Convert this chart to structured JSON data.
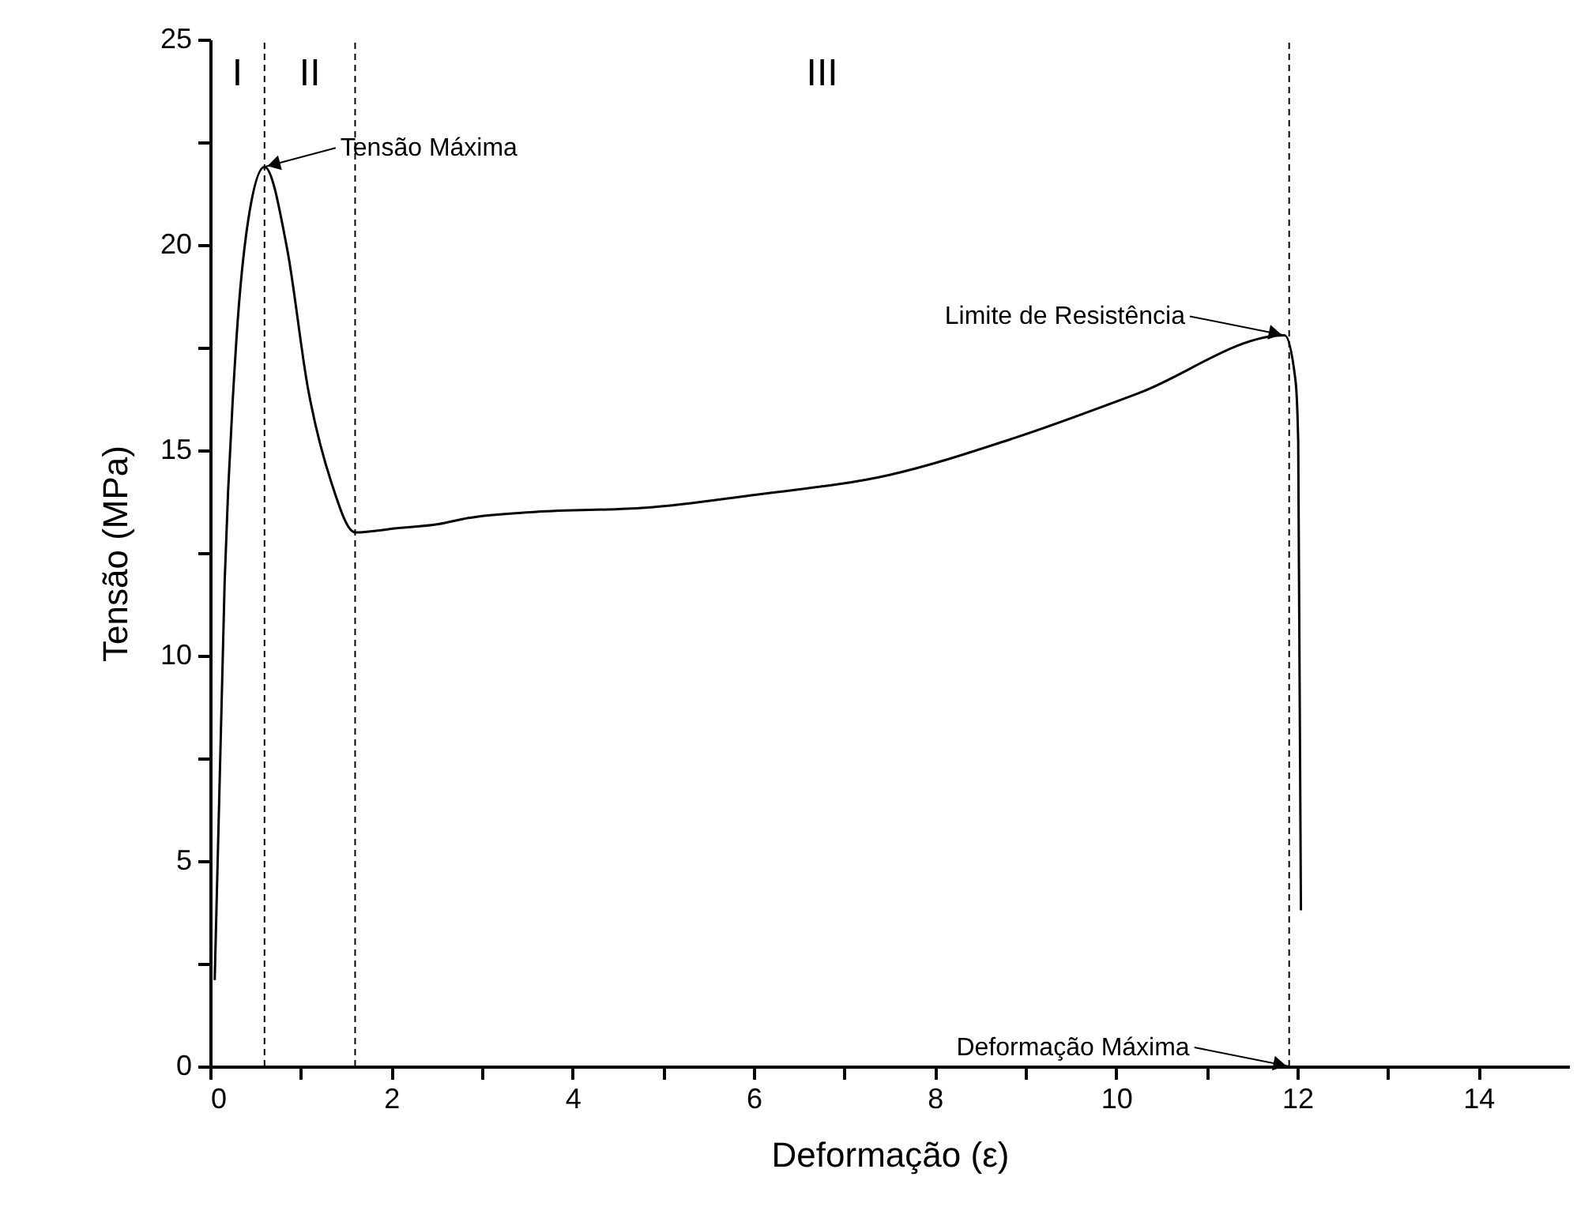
{
  "chart_data": {
    "type": "line",
    "xlabel": "Deformação (ε)",
    "ylabel": "Tensão (MPa)",
    "xlim": [
      0,
      15
    ],
    "ylim": [
      0,
      25
    ],
    "xticks": [
      0,
      {
        "value": 1,
        "label": null
      },
      2,
      {
        "value": 3,
        "label": null
      },
      4,
      {
        "value": 5,
        "label": null
      },
      6,
      {
        "value": 7,
        "label": null
      },
      8,
      {
        "value": 9,
        "label": null
      },
      10,
      {
        "value": 11,
        "label": null
      },
      12,
      {
        "value": 13,
        "label": null
      },
      14
    ],
    "yticks": [
      0,
      {
        "value": 2.5,
        "label": null
      },
      5,
      {
        "value": 7.5,
        "label": null
      },
      10,
      {
        "value": 12.5,
        "label": null
      },
      15,
      {
        "value": 17.5,
        "label": null
      },
      20,
      {
        "value": 22.5,
        "label": null
      },
      25
    ],
    "marker": "none",
    "line_style": "solid",
    "series": [
      {
        "color": "#000000",
        "x": [
          0.05,
          0.16,
          0.29,
          0.42,
          0.6,
          0.85,
          1.08,
          1.34,
          1.6,
          2.06,
          2.52,
          2.85,
          3.6,
          4.81,
          5.96,
          7.5,
          8.88,
          10.26,
          11.86,
          11.98,
          12.01,
          12.04
        ],
        "values": [
          2.1,
          11.8,
          17.7,
          20.6,
          21.9,
          19.9,
          16.5,
          14.2,
          13.0,
          13.1,
          13.2,
          13.35,
          13.5,
          13.6,
          13.9,
          14.4,
          15.3,
          16.4,
          17.8,
          16.7,
          15.2,
          3.8
        ]
      }
    ],
    "ref_lines": [
      {
        "axis": "x",
        "value": 0.6,
        "line_style": "dashed"
      },
      {
        "axis": "x",
        "value": 1.6,
        "line_style": "dashed"
      },
      {
        "axis": "x",
        "value": 11.91,
        "line_style": "dashed"
      }
    ],
    "annotations": [
      "I",
      "II",
      "III",
      {
        "text": "Tensão Máxima",
        "x": 0.6,
        "y": 21.9
      },
      {
        "text": "Limite de Resistência",
        "x": 11.86,
        "y": 17.8
      },
      {
        "text": "Deformação Máxima",
        "x": 11.91,
        "y": 0
      }
    ]
  }
}
